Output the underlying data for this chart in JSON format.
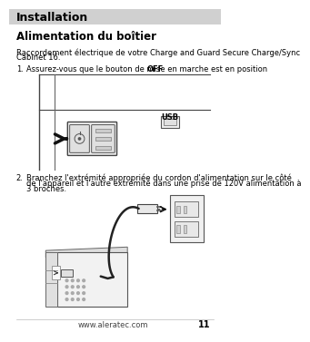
{
  "bg_color": "#ffffff",
  "header_bg": "#d0d0d0",
  "header_text": "Installation",
  "section_title": "Alimentation du boîtier",
  "para1_line1": "Raccordement électrique de votre Charge and Guard Secure Charge/Sync",
  "para1_line2": "Cabinet 16.",
  "step1_num": "1.",
  "step1_pre": "Assurez-vous que le bouton de mise en marche est en position ",
  "step1_bold": "OFF",
  "step1_post": ".",
  "step2_num": "2.",
  "step2_line1": "Branchez l'extrémité appropriée du cordon d'alimentation sur le côté",
  "step2_line2": "de l'appareil et l'autre extrémité dans une prise de 120V alimentation à",
  "step2_line3": "3 broches.",
  "footer_url": "www.aleratec.com",
  "footer_page": "11",
  "line_color": "#888888",
  "draw_color": "#333333"
}
